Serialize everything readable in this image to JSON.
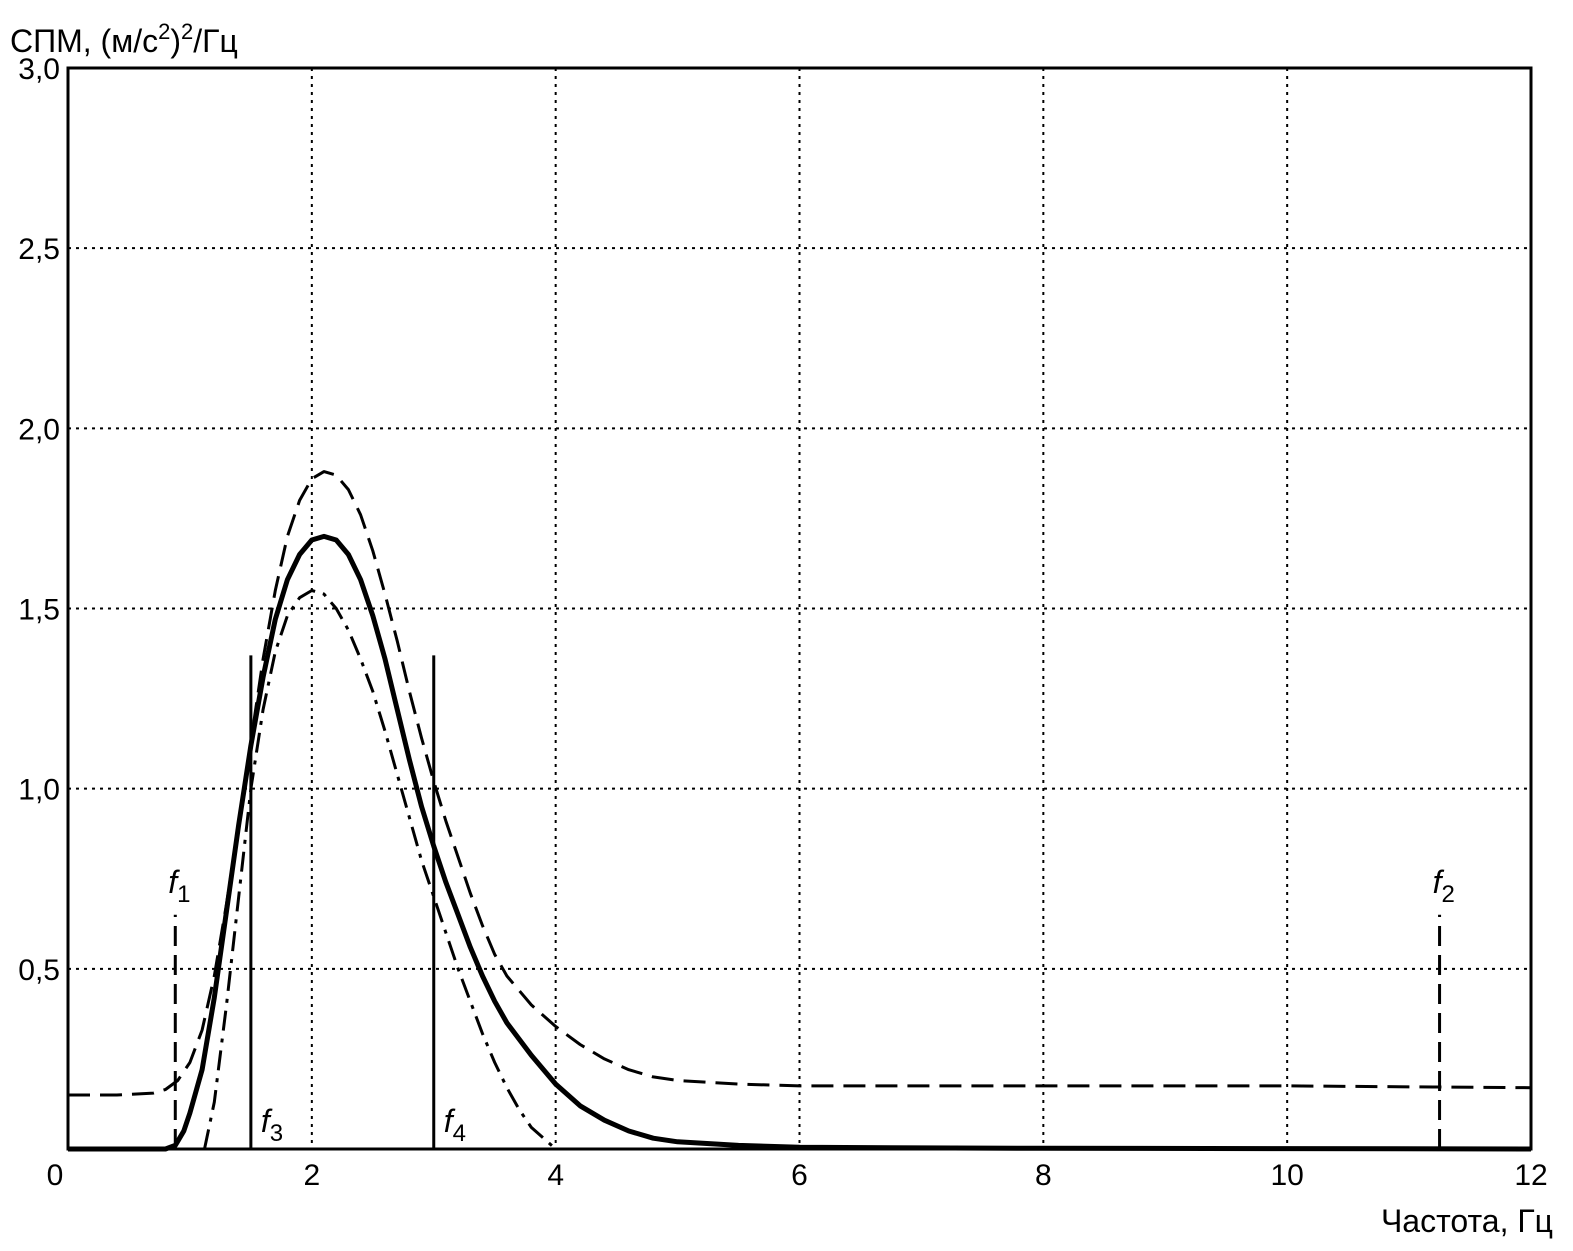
{
  "chart_data": {
    "type": "line",
    "ylabel_parts": [
      "СПМ, (м/с",
      "2",
      ")",
      "2",
      "/Гц"
    ],
    "xlabel": "Частота, Гц",
    "xlim": [
      0,
      12
    ],
    "ylim": [
      0,
      3.0
    ],
    "grid": true,
    "x_ticks": [
      {
        "v": 0,
        "label": "0"
      },
      {
        "v": 2,
        "label": "2"
      },
      {
        "v": 4,
        "label": "4"
      },
      {
        "v": 6,
        "label": "6"
      },
      {
        "v": 8,
        "label": "8"
      },
      {
        "v": 10,
        "label": "10"
      },
      {
        "v": 12,
        "label": "12"
      }
    ],
    "y_ticks": [
      {
        "v": 0.5,
        "label": "0,5"
      },
      {
        "v": 1.0,
        "label": "1,0"
      },
      {
        "v": 1.5,
        "label": "1,5"
      },
      {
        "v": 2.0,
        "label": "2,0"
      },
      {
        "v": 2.5,
        "label": "2,5"
      },
      {
        "v": 3.0,
        "label": "3,0"
      }
    ],
    "series": [
      {
        "style": "solid",
        "x": [
          0,
          0.5,
          0.8,
          0.88,
          0.95,
          1.0,
          1.1,
          1.2,
          1.3,
          1.4,
          1.5,
          1.6,
          1.7,
          1.8,
          1.9,
          2.0,
          2.1,
          2.2,
          2.3,
          2.4,
          2.5,
          2.6,
          2.7,
          2.8,
          2.9,
          3.0,
          3.1,
          3.2,
          3.3,
          3.4,
          3.5,
          3.6,
          3.8,
          4.0,
          4.2,
          4.4,
          4.6,
          4.8,
          5.0,
          5.5,
          6.0,
          7.0,
          8.0,
          10.0,
          12.0
        ],
        "y": [
          0,
          0,
          0,
          0.01,
          0.05,
          0.1,
          0.22,
          0.42,
          0.66,
          0.9,
          1.12,
          1.31,
          1.47,
          1.58,
          1.65,
          1.69,
          1.7,
          1.69,
          1.65,
          1.58,
          1.48,
          1.36,
          1.22,
          1.08,
          0.95,
          0.84,
          0.74,
          0.65,
          0.56,
          0.48,
          0.41,
          0.35,
          0.26,
          0.18,
          0.12,
          0.08,
          0.05,
          0.03,
          0.02,
          0.01,
          0.005,
          0.003,
          0.002,
          0.001,
          0
        ]
      },
      {
        "style": "dashed",
        "x": [
          0,
          0.4,
          0.7,
          0.8,
          0.9,
          1.0,
          1.1,
          1.2,
          1.3,
          1.4,
          1.5,
          1.6,
          1.7,
          1.8,
          1.9,
          2.0,
          2.1,
          2.2,
          2.3,
          2.4,
          2.5,
          2.6,
          2.7,
          2.8,
          2.9,
          3.0,
          3.1,
          3.2,
          3.3,
          3.4,
          3.5,
          3.6,
          3.8,
          4.0,
          4.2,
          4.4,
          4.6,
          4.8,
          5.0,
          5.5,
          6.0,
          8.0,
          10.0,
          11.2,
          12.0
        ],
        "y": [
          0.15,
          0.15,
          0.155,
          0.165,
          0.19,
          0.24,
          0.33,
          0.48,
          0.68,
          0.9,
          1.13,
          1.36,
          1.55,
          1.7,
          1.8,
          1.86,
          1.88,
          1.87,
          1.83,
          1.76,
          1.66,
          1.54,
          1.41,
          1.27,
          1.14,
          1.02,
          0.91,
          0.81,
          0.71,
          0.62,
          0.54,
          0.48,
          0.4,
          0.34,
          0.29,
          0.25,
          0.22,
          0.2,
          0.19,
          0.18,
          0.175,
          0.175,
          0.175,
          0.172,
          0.17
        ]
      },
      {
        "style": "dash-dot",
        "x": [
          1.12,
          1.2,
          1.3,
          1.4,
          1.5,
          1.6,
          1.7,
          1.8,
          1.9,
          2.0,
          2.1,
          2.2,
          2.3,
          2.4,
          2.5,
          2.6,
          2.7,
          2.8,
          2.9,
          3.0,
          3.1,
          3.2,
          3.3,
          3.4,
          3.5,
          3.6,
          3.7,
          3.8,
          3.9,
          4.0
        ],
        "y": [
          0,
          0.13,
          0.4,
          0.7,
          1.0,
          1.22,
          1.38,
          1.48,
          1.53,
          1.55,
          1.54,
          1.5,
          1.44,
          1.36,
          1.27,
          1.16,
          1.04,
          0.92,
          0.8,
          0.7,
          0.6,
          0.5,
          0.41,
          0.32,
          0.24,
          0.17,
          0.11,
          0.06,
          0.03,
          0
        ]
      }
    ],
    "markers": [
      {
        "name": "f",
        "sub": "1",
        "x": 0.88,
        "top": 0.65,
        "style": "dashed"
      },
      {
        "name": "f",
        "sub": "2",
        "x": 11.25,
        "top": 0.65,
        "style": "dashed"
      },
      {
        "name": "f",
        "sub": "3",
        "x": 1.5,
        "top": 1.37,
        "style": "solid"
      },
      {
        "name": "f",
        "sub": "4",
        "x": 3.0,
        "top": 1.37,
        "style": "solid"
      }
    ]
  }
}
